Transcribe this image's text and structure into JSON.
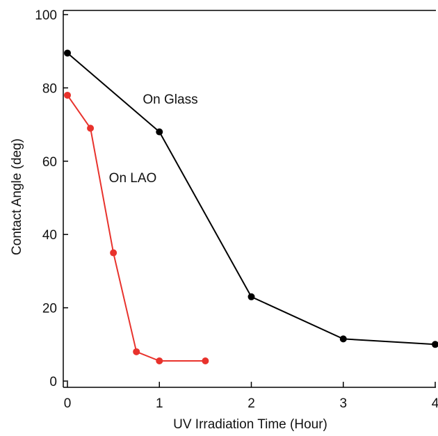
{
  "chart_data": {
    "type": "line",
    "xlabel": "UV Irradiation Time (Hour)",
    "ylabel": "Contact Angle (deg)",
    "xlim": [
      0,
      4
    ],
    "ylim": [
      0,
      100
    ],
    "x_ticks": [
      0,
      1,
      2,
      3,
      4
    ],
    "y_ticks": [
      0,
      20,
      40,
      60,
      80,
      100
    ],
    "grid": false,
    "legend": "none",
    "series": [
      {
        "name": "On Glass",
        "color": "#000000",
        "x": [
          0,
          1,
          2,
          3,
          4
        ],
        "y": [
          89.5,
          68,
          23,
          11.5,
          10
        ]
      },
      {
        "name": "On LAO",
        "color": "#e8322c",
        "x": [
          0,
          0.25,
          0.5,
          0.75,
          1,
          1.5
        ],
        "y": [
          78,
          69,
          35,
          8,
          5.5,
          5.5
        ]
      }
    ]
  }
}
